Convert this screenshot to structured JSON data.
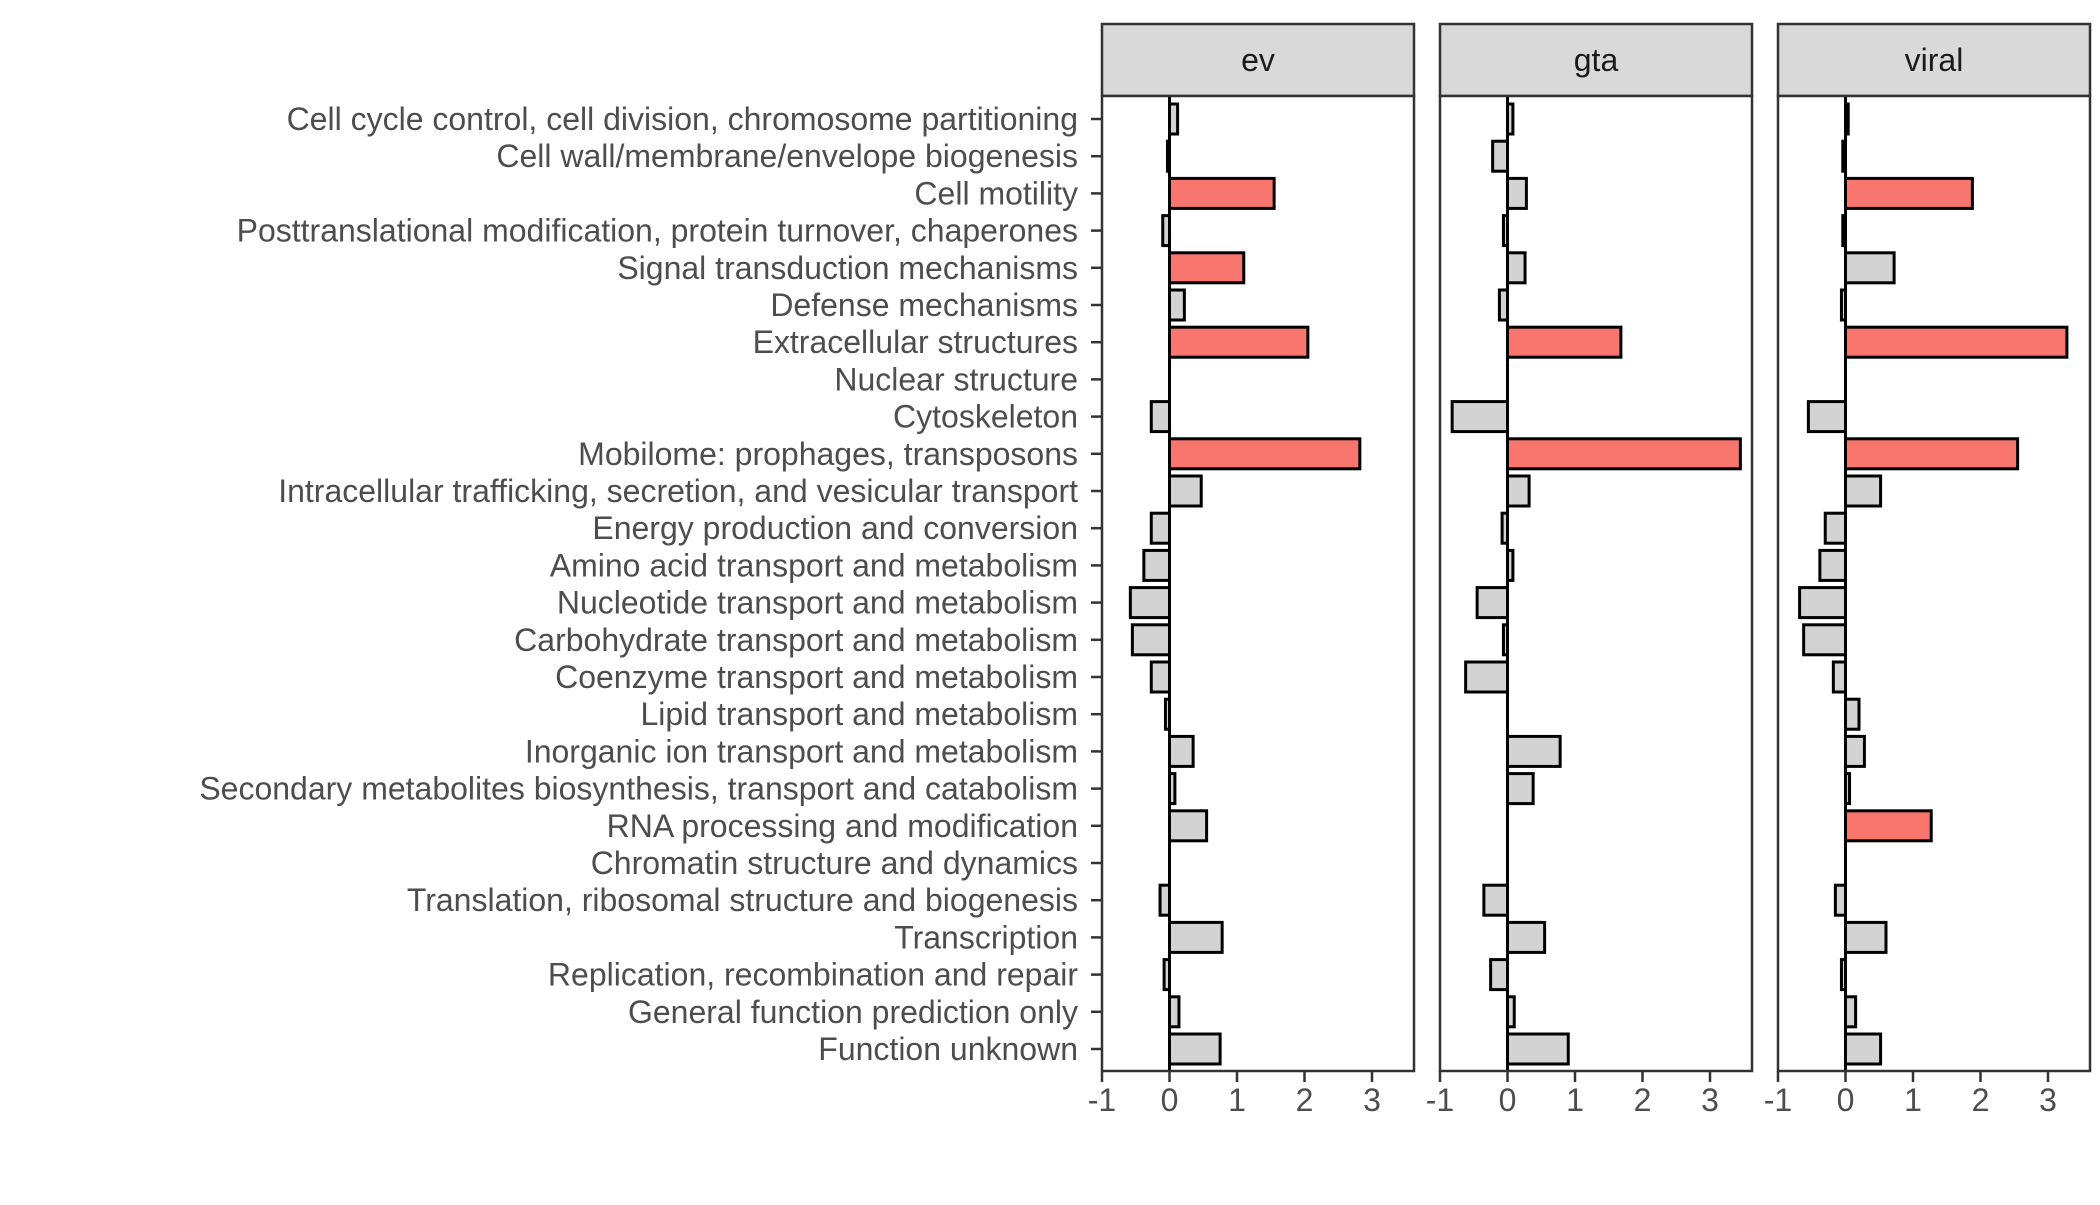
{
  "chart_data": {
    "type": "bar",
    "orientation": "horizontal",
    "facets": [
      "ev",
      "gta",
      "viral"
    ],
    "categories": [
      "Cell cycle control, cell division, chromosome partitioning",
      "Cell wall/membrane/envelope biogenesis",
      "Cell motility",
      "Posttranslational modification, protein turnover, chaperones",
      "Signal transduction mechanisms",
      "Defense mechanisms",
      "Extracellular structures",
      "Nuclear structure",
      "Cytoskeleton",
      "Mobilome: prophages, transposons",
      "Intracellular trafficking, secretion, and vesicular transport",
      "Energy production and conversion",
      "Amino acid transport and metabolism",
      "Nucleotide transport and metabolism",
      "Carbohydrate transport and metabolism",
      "Coenzyme transport and metabolism",
      "Lipid transport and metabolism",
      "Inorganic ion transport and metabolism",
      "Secondary metabolites biosynthesis, transport and catabolism",
      "RNA processing and modification",
      "Chromatin structure and dynamics",
      "Translation, ribosomal structure and biogenesis",
      "Transcription",
      "Replication, recombination and repair",
      "General function prediction only",
      "Function unknown"
    ],
    "series": [
      {
        "values": [
          0.12,
          -0.03,
          1.55,
          -0.1,
          1.1,
          0.22,
          2.05,
          0.0,
          -0.27,
          2.82,
          0.47,
          -0.27,
          -0.38,
          -0.58,
          -0.55,
          -0.27,
          -0.06,
          0.35,
          0.08,
          0.55,
          0.0,
          -0.14,
          0.78,
          -0.08,
          0.14,
          0.75
        ],
        "highlight": [
          false,
          false,
          true,
          false,
          true,
          false,
          true,
          false,
          false,
          true,
          false,
          false,
          false,
          false,
          false,
          false,
          false,
          false,
          false,
          false,
          false,
          false,
          false,
          false,
          false,
          false
        ]
      },
      {
        "values": [
          0.08,
          -0.22,
          0.28,
          -0.06,
          0.26,
          -0.12,
          1.68,
          0.0,
          -0.82,
          3.45,
          0.32,
          -0.08,
          0.08,
          -0.45,
          -0.06,
          -0.62,
          0.0,
          0.78,
          0.38,
          0.0,
          0.0,
          -0.35,
          0.55,
          -0.25,
          0.1,
          0.9
        ],
        "highlight": [
          false,
          false,
          false,
          false,
          false,
          false,
          true,
          false,
          false,
          true,
          false,
          false,
          false,
          false,
          false,
          false,
          false,
          false,
          false,
          false,
          false,
          false,
          false,
          false,
          false,
          false
        ]
      },
      {
        "values": [
          0.04,
          -0.04,
          1.88,
          -0.04,
          0.72,
          -0.06,
          3.28,
          0.0,
          -0.55,
          2.55,
          0.52,
          -0.3,
          -0.38,
          -0.68,
          -0.62,
          -0.18,
          0.2,
          0.28,
          0.06,
          1.27,
          0.0,
          -0.15,
          0.6,
          -0.06,
          0.15,
          0.52
        ],
        "highlight": [
          false,
          false,
          true,
          false,
          false,
          false,
          true,
          false,
          false,
          true,
          false,
          false,
          false,
          false,
          false,
          false,
          false,
          false,
          false,
          true,
          false,
          false,
          false,
          false,
          false,
          false
        ]
      }
    ],
    "xlim": [
      -1,
      3.6
    ],
    "xticks": [
      "-1",
      "0",
      "1",
      "2",
      "3"
    ],
    "xlabel": "",
    "ylabel": "",
    "title": "",
    "colors": {
      "highlight": "#F8766D",
      "normal": "#D3D3D3",
      "bar_stroke": "#000000",
      "strip_fill": "#D9D9D9",
      "panel_border": "#333333",
      "axis_text": "#4D4D4D",
      "strip_text": "#1A1A1A"
    },
    "grid": false,
    "legend": "none"
  }
}
